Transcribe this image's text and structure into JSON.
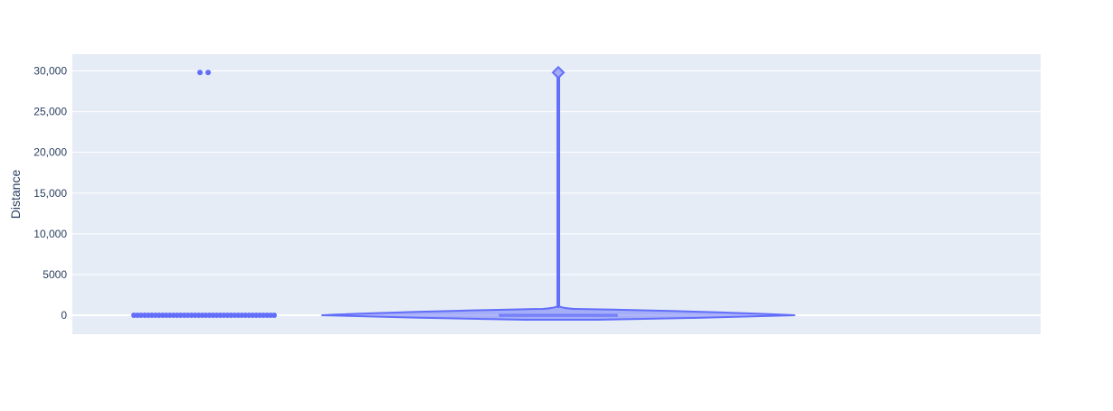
{
  "chart_data": {
    "type": "violin",
    "title": "",
    "xlabel": "",
    "ylabel": "Distance",
    "ylim": [
      -2300,
      32000
    ],
    "yticks": [
      0,
      5000,
      10000,
      15000,
      20000,
      25000,
      30000
    ],
    "ytick_labels": [
      "0",
      "5000",
      "10,000",
      "15,000",
      "20,000",
      "25,000",
      "30,000"
    ],
    "grid": true,
    "legend": "none",
    "colors": {
      "trace": "#636efa",
      "plot_background": "#e5ecf6",
      "grid": "#ffffff",
      "text": "#2a3f5f"
    },
    "points": {
      "low_values": [
        0,
        0,
        0,
        0,
        0,
        0,
        0,
        0,
        0,
        0,
        0,
        0,
        0,
        0,
        0,
        0,
        0,
        0,
        0,
        0,
        0,
        0,
        0,
        0,
        0,
        0,
        0,
        0,
        0,
        0,
        0,
        0,
        0,
        0,
        0,
        0,
        0,
        0,
        0,
        0
      ],
      "outliers": [
        29800,
        29800
      ]
    },
    "violin": {
      "min": 0,
      "max": 29800,
      "median": 0,
      "box_q1": -50,
      "box_q3": 100
    }
  }
}
